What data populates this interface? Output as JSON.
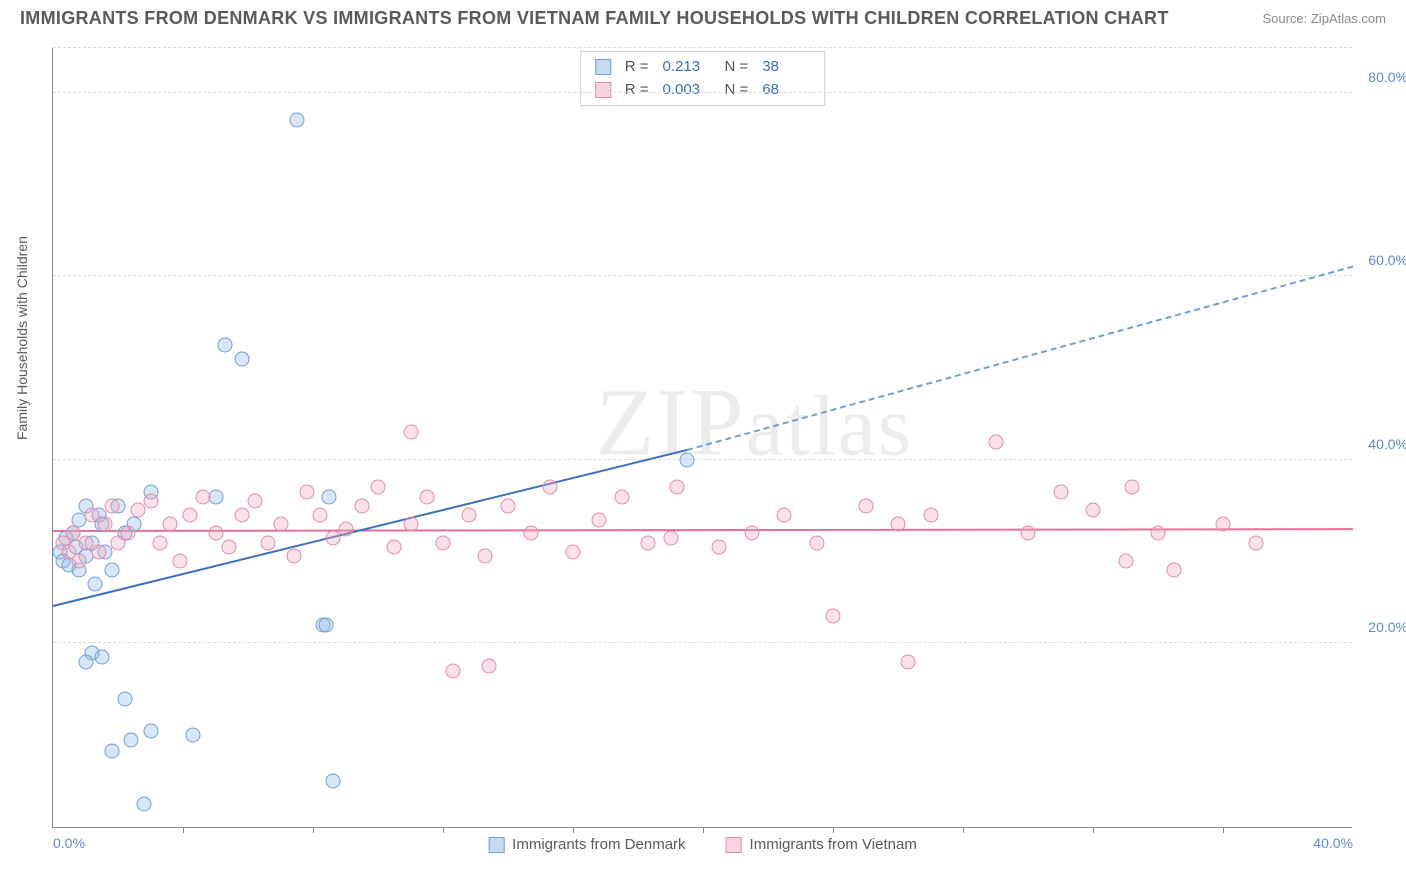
{
  "header": {
    "title": "IMMIGRANTS FROM DENMARK VS IMMIGRANTS FROM VIETNAM FAMILY HOUSEHOLDS WITH CHILDREN CORRELATION CHART",
    "source_prefix": "Source: ",
    "source_name": "ZipAtlas.com"
  },
  "ylabel": "Family Households with Children",
  "watermark": {
    "pre": "ZIP",
    "post": "atlas"
  },
  "chart": {
    "type": "scatter",
    "xlim": [
      0,
      40
    ],
    "ylim": [
      0,
      85
    ],
    "xtick_labels": [
      "0.0%",
      "40.0%"
    ],
    "xtick_positions": [
      0,
      40
    ],
    "xtick_minor": [
      4,
      8,
      12,
      16,
      20,
      24,
      28,
      32,
      36
    ],
    "ytick_labels": [
      "20.0%",
      "40.0%",
      "60.0%",
      "80.0%"
    ],
    "ytick_positions": [
      20,
      40,
      60,
      80
    ],
    "grid_color": "#dcdcdc",
    "axis_color": "#888888",
    "background_color": "#ffffff",
    "marker_size": 15,
    "series": [
      {
        "key": "a",
        "name": "Immigrants from Denmark",
        "fill": "rgba(143,182,228,0.35)",
        "stroke": "#6f9fd8",
        "r_label": "R =",
        "r_value": "0.213",
        "n_label": "N =",
        "n_value": "38",
        "trend": {
          "x1": 0,
          "y1": 24,
          "x2": 19.5,
          "y2": 41,
          "color": "#3a6fc4"
        },
        "trend_ext": {
          "x1": 19.5,
          "y1": 41,
          "x2": 40,
          "y2": 61,
          "color": "#6f9fd8"
        },
        "points": [
          [
            0.2,
            30
          ],
          [
            0.3,
            29
          ],
          [
            0.4,
            31.5
          ],
          [
            0.5,
            28.5
          ],
          [
            0.6,
            32
          ],
          [
            0.7,
            30.5
          ],
          [
            0.8,
            33.5
          ],
          [
            0.8,
            28
          ],
          [
            1.0,
            29.5
          ],
          [
            1.0,
            35
          ],
          [
            1.2,
            31
          ],
          [
            1.3,
            26.5
          ],
          [
            1.4,
            34
          ],
          [
            1.5,
            33
          ],
          [
            1.6,
            30
          ],
          [
            1.8,
            28
          ],
          [
            2.0,
            35
          ],
          [
            2.2,
            32
          ],
          [
            2.5,
            33
          ],
          [
            3.0,
            36.5
          ],
          [
            5.0,
            36
          ],
          [
            5.3,
            52.5
          ],
          [
            5.8,
            51
          ],
          [
            7.5,
            77
          ],
          [
            8.3,
            22
          ],
          [
            8.5,
            36
          ],
          [
            19.5,
            40
          ],
          [
            1.2,
            19
          ],
          [
            1.0,
            18
          ],
          [
            1.5,
            18.5
          ],
          [
            2.2,
            14
          ],
          [
            2.4,
            9.5
          ],
          [
            3.0,
            10.5
          ],
          [
            4.3,
            10
          ],
          [
            1.8,
            8.3
          ],
          [
            2.8,
            2.5
          ],
          [
            8.6,
            5
          ],
          [
            8.4,
            22
          ]
        ]
      },
      {
        "key": "b",
        "name": "Immigrants from Vietnam",
        "fill": "rgba(241,169,191,0.35)",
        "stroke": "#e38ba8",
        "r_label": "R =",
        "r_value": "0.003",
        "n_label": "N =",
        "n_value": "68",
        "trend": {
          "x1": 0,
          "y1": 32.1,
          "x2": 40,
          "y2": 32.3,
          "color": "#e56f9a"
        },
        "points": [
          [
            0.3,
            31
          ],
          [
            0.5,
            30
          ],
          [
            0.6,
            32
          ],
          [
            0.8,
            29
          ],
          [
            1.0,
            31
          ],
          [
            1.2,
            34
          ],
          [
            1.4,
            30
          ],
          [
            1.6,
            33
          ],
          [
            1.8,
            35
          ],
          [
            2.0,
            31
          ],
          [
            2.3,
            32
          ],
          [
            2.6,
            34.5
          ],
          [
            3.0,
            35.5
          ],
          [
            3.3,
            31
          ],
          [
            3.6,
            33
          ],
          [
            3.9,
            29
          ],
          [
            4.2,
            34
          ],
          [
            4.6,
            36
          ],
          [
            5.0,
            32
          ],
          [
            5.4,
            30.5
          ],
          [
            5.8,
            34
          ],
          [
            6.2,
            35.5
          ],
          [
            6.6,
            31
          ],
          [
            7.0,
            33
          ],
          [
            7.4,
            29.5
          ],
          [
            7.8,
            36.5
          ],
          [
            8.2,
            34
          ],
          [
            8.6,
            31.5
          ],
          [
            9.0,
            32.5
          ],
          [
            9.5,
            35
          ],
          [
            10.0,
            37
          ],
          [
            10.5,
            30.5
          ],
          [
            11.0,
            33
          ],
          [
            11.0,
            43
          ],
          [
            11.5,
            36
          ],
          [
            12.0,
            31
          ],
          [
            12.3,
            17
          ],
          [
            12.8,
            34
          ],
          [
            13.3,
            29.5
          ],
          [
            13.4,
            17.5
          ],
          [
            14.0,
            35
          ],
          [
            14.7,
            32
          ],
          [
            15.3,
            37
          ],
          [
            16.0,
            30
          ],
          [
            16.8,
            33.5
          ],
          [
            17.5,
            36
          ],
          [
            18.3,
            31
          ],
          [
            19.0,
            31.5
          ],
          [
            19.2,
            37
          ],
          [
            20.5,
            30.5
          ],
          [
            21.5,
            32
          ],
          [
            22.5,
            34
          ],
          [
            23.5,
            31
          ],
          [
            24.0,
            23
          ],
          [
            25.0,
            35
          ],
          [
            26.0,
            33
          ],
          [
            26.3,
            18
          ],
          [
            27.0,
            34
          ],
          [
            29.0,
            42
          ],
          [
            30.0,
            32
          ],
          [
            31.0,
            36.5
          ],
          [
            32.0,
            34.5
          ],
          [
            33.0,
            29
          ],
          [
            33.2,
            37
          ],
          [
            34.0,
            32
          ],
          [
            34.5,
            28
          ],
          [
            36.0,
            33
          ],
          [
            37.0,
            31
          ]
        ]
      }
    ]
  }
}
